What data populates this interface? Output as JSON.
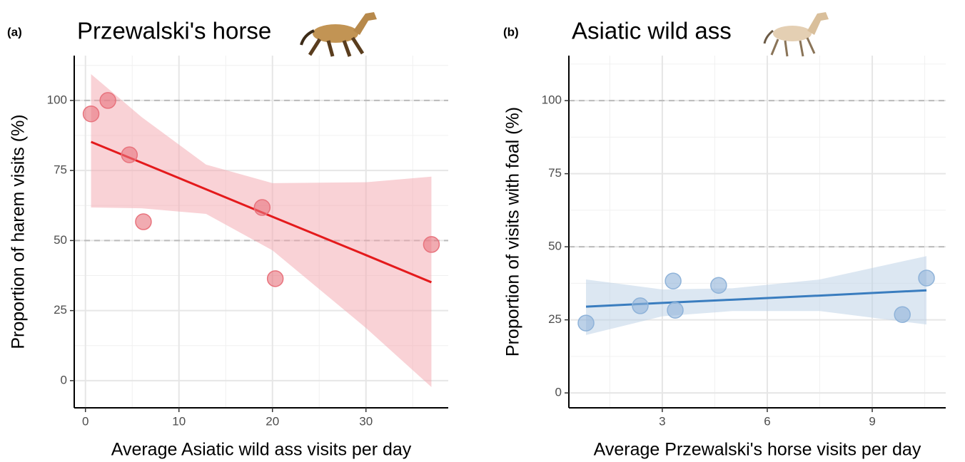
{
  "chart_data": [
    {
      "type": "scatter",
      "panel_label": "(a)",
      "title": "Przewalski's horse",
      "x_label": "Average Asiatic wild ass visits per day",
      "y_label": "Proportion of harem visits (%)",
      "x": [
        0.6,
        2.4,
        4.7,
        6.2,
        18.9,
        20.3,
        37.0
      ],
      "y": [
        95.2,
        100,
        80.6,
        56.7,
        61.8,
        36.4,
        48.6
      ],
      "color": "#e8737d",
      "fit_color": "#e41a1c",
      "band_color": "#f4a6ae",
      "fit": {
        "x": [
          0.6,
          6,
          12.9,
          20,
          30,
          37
        ],
        "y": [
          85.2,
          77.8,
          68.3,
          58.5,
          44.8,
          35.1
        ],
        "lower": [
          61.8,
          61.5,
          59.5,
          46.5,
          18.8,
          -2.3
        ],
        "upper": [
          109.4,
          94.1,
          77.1,
          70.5,
          70.8,
          72.8
        ]
      },
      "xlim": [
        -1.2,
        38.8
      ],
      "ylim": [
        -9.7,
        116
      ],
      "xticks": [
        0,
        10,
        20,
        30
      ],
      "yticks": [
        0,
        25,
        50,
        75,
        100
      ],
      "x_minor_grid": [
        5,
        15,
        25,
        35
      ],
      "y_minor_grid": [
        12.5,
        37.5,
        62.5,
        87.5,
        112.5
      ],
      "hlines": [
        50,
        100
      ],
      "grid": true
    },
    {
      "type": "scatter",
      "panel_label": "(b)",
      "title": "Asiatic wild ass",
      "x_label": "Average Przewalski's horse visits per day",
      "y_label": "Proportion of visits with foal (%)",
      "x": [
        0.82,
        2.37,
        3.31,
        3.37,
        4.61,
        9.86,
        10.55
      ],
      "y": [
        23.9,
        29.8,
        38.3,
        28.3,
        36.8,
        26.8,
        39.3
      ],
      "color": "#8fb3d9",
      "fit_color": "#3a7dbf",
      "band_color": "#b9cfe6",
      "fit": {
        "x": [
          0.82,
          3,
          5,
          7.5,
          10.55
        ],
        "y": [
          29.5,
          30.8,
          31.9,
          33.3,
          35.1
        ],
        "lower": [
          19.8,
          26.2,
          28.0,
          28.0,
          23.4
        ],
        "upper": [
          38.8,
          35.4,
          35.8,
          38.8,
          46.8
        ]
      },
      "xlim": [
        0.33,
        11.1
      ],
      "ylim": [
        -5.1,
        115.4
      ],
      "xticks": [
        3,
        6,
        9
      ],
      "yticks": [
        0,
        25,
        50,
        75,
        100
      ],
      "x_minor_grid": [
        1.5,
        4.5,
        7.5,
        10.5
      ],
      "y_minor_grid": [
        12.5,
        37.5,
        62.5,
        87.5,
        112.5
      ],
      "hlines": [
        50,
        100
      ],
      "grid": true
    }
  ]
}
